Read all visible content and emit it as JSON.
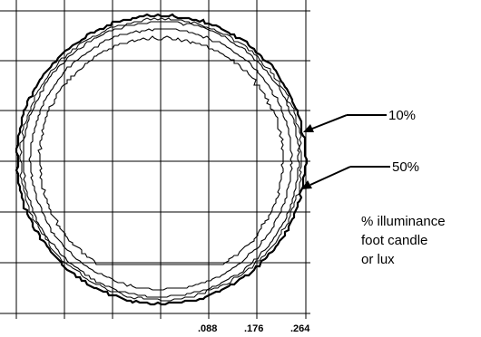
{
  "chart_data": {
    "type": "isolux_contour",
    "x_tick_labels": [
      ".088",
      ".176",
      ".264"
    ],
    "annotations": [
      {
        "label": "10%",
        "target": "outer-contour"
      },
      {
        "label": "50%",
        "target": "inner-contour"
      }
    ],
    "legend_note": [
      "% illuminance",
      "foot candle",
      "or lux"
    ],
    "contours": [
      {
        "name": "outer-contour",
        "radius_units": 0.27
      },
      {
        "name": "contour-2",
        "radius_units": 0.258
      },
      {
        "name": "contour-3",
        "radius_units": 0.244
      },
      {
        "name": "inner-contour",
        "radius_units": 0.228
      }
    ],
    "grid": true,
    "colors": {
      "line": "#000000",
      "grid": "#000000"
    }
  }
}
